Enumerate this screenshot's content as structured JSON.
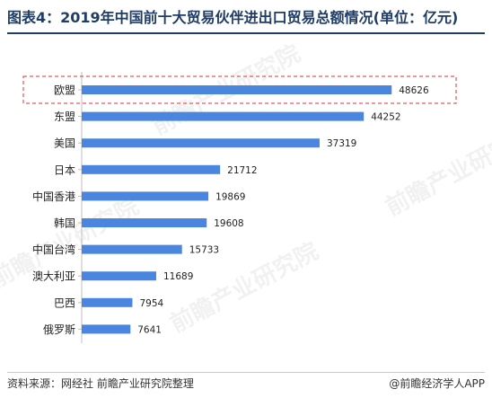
{
  "title": "图表4：2019年中国前十大贸易伙伴进出口贸易总额情况(单位：亿元)",
  "source": "资料来源：网经社 前瞻产业研究院整理",
  "brand": "@前瞻经济学人APP",
  "watermark": "前瞻产业研究院",
  "colors": {
    "bar": "#4a86e0",
    "highlight_box": "#e03030",
    "title": "#1f3d66"
  },
  "chart_data": {
    "type": "bar",
    "orientation": "horizontal",
    "categories": [
      "欧盟",
      "东盟",
      "美国",
      "日本",
      "中国香港",
      "韩国",
      "中国台湾",
      "澳大利亚",
      "巴西",
      "俄罗斯"
    ],
    "values": [
      48626,
      44252,
      37319,
      21712,
      19869,
      19608,
      15733,
      11689,
      7954,
      7641
    ],
    "highlight": "欧盟",
    "xlim": [
      0,
      50000
    ],
    "grid": false,
    "data_labels": true
  }
}
